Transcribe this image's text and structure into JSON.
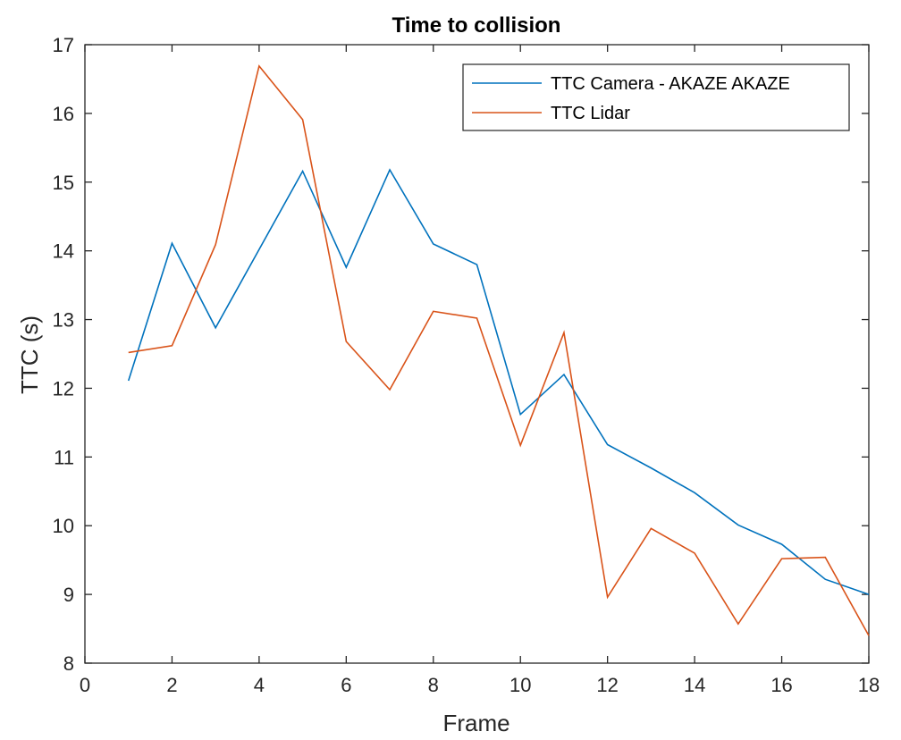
{
  "chart_data": {
    "type": "line",
    "title": "Time to collision",
    "xlabel": "Frame",
    "ylabel": "TTC (s)",
    "xlim": [
      0,
      18
    ],
    "ylim": [
      8,
      17
    ],
    "xticks": [
      0,
      2,
      4,
      6,
      8,
      10,
      12,
      14,
      16,
      18
    ],
    "yticks": [
      8,
      9,
      10,
      11,
      12,
      13,
      14,
      15,
      16,
      17
    ],
    "grid": false,
    "legend_position": "top-right",
    "x": [
      1,
      2,
      3,
      4,
      5,
      6,
      7,
      8,
      9,
      10,
      11,
      12,
      13,
      14,
      15,
      16,
      17,
      18
    ],
    "series": [
      {
        "name": "TTC Camera - AKAZE AKAZE",
        "color": "#0072BD",
        "values": [
          12.11,
          14.11,
          12.88,
          14.02,
          15.16,
          13.76,
          15.18,
          14.1,
          13.8,
          11.62,
          12.2,
          11.18,
          10.84,
          10.48,
          10.01,
          9.73,
          9.22,
          9.0
        ]
      },
      {
        "name": "TTC Lidar",
        "color": "#D95319",
        "values": [
          12.52,
          12.62,
          14.09,
          16.69,
          15.91,
          12.68,
          11.98,
          13.12,
          13.02,
          11.17,
          12.81,
          8.96,
          9.96,
          9.6,
          8.57,
          9.52,
          9.54,
          8.4
        ]
      }
    ]
  }
}
